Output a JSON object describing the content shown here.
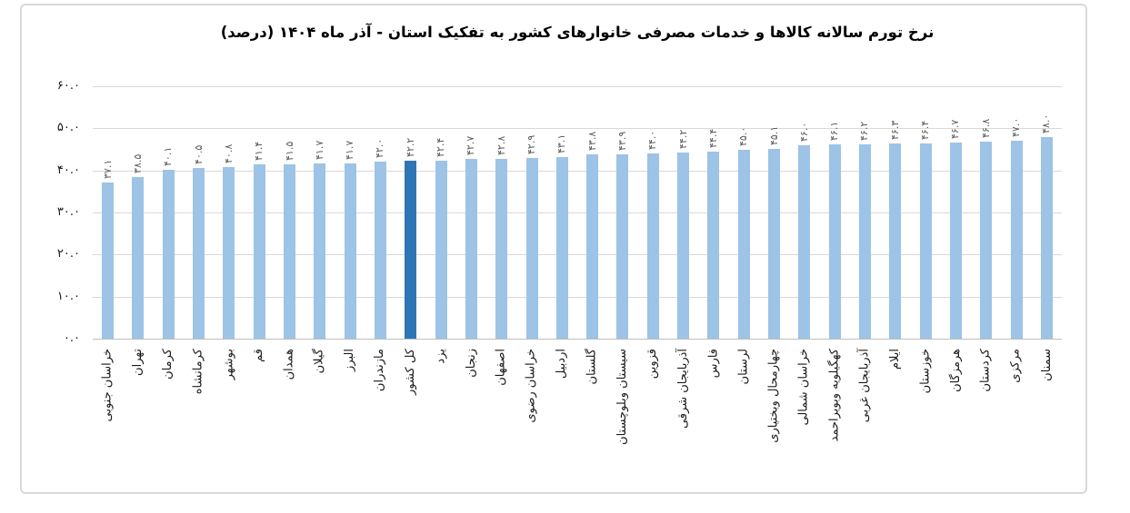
{
  "chart_data": {
    "type": "bar",
    "title": "نرخ تورم سالانه کالاها و خدمات مصرفی خانوارهای کشور به تفکیک استان - آذر ماه ۱۴۰۴ (درصد)",
    "categories": [
      "خراسان جنوبی",
      "تهران",
      "کرمان",
      "کرمانشاه",
      "بوشهر",
      "قم",
      "همدان",
      "گیلان",
      "البرز",
      "مازندران",
      "کل کشور",
      "یزد",
      "زنجان",
      "اصفهان",
      "خراسان رضوی",
      "اردبیل",
      "گلستان",
      "سیستان وبلوچستان",
      "قزوین",
      "آذربایجان شرقی",
      "فارس",
      "لرستان",
      "چهارمحال وبختیاری",
      "خراسان شمالی",
      "کهگیلویه وبویراحمد",
      "آذربایجان غربی",
      "ایلام",
      "خوزستان",
      "هرمزگان",
      "کردستان",
      "مرکزی",
      "سمنان"
    ],
    "values": [
      37.1,
      38.5,
      40.1,
      40.5,
      40.8,
      41.4,
      41.5,
      41.7,
      41.7,
      42.0,
      42.2,
      42.4,
      42.7,
      42.8,
      42.9,
      43.1,
      43.8,
      43.9,
      44.0,
      44.2,
      44.4,
      45.0,
      45.1,
      46.0,
      46.1,
      46.2,
      46.3,
      46.4,
      46.7,
      46.8,
      47.0,
      48.0
    ],
    "value_labels": [
      "۳۷.۱",
      "۳۸.۵",
      "۴۰.۱",
      "۴۰.۵",
      "۴۰.۸",
      "۴۱.۴",
      "۴۱.۵",
      "۴۱.۷",
      "۴۱.۷",
      "۴۲.۰",
      "۴۲.۲",
      "۴۲.۴",
      "۴۲.۷",
      "۴۲.۸",
      "۴۲.۹",
      "۴۳.۱",
      "۴۳.۸",
      "۴۳.۹",
      "۴۴.۰",
      "۴۴.۲",
      "۴۴.۴",
      "۴۵.۰",
      "۴۵.۱",
      "۴۶.۰",
      "۴۶.۱",
      "۴۶.۲",
      "۴۶.۳",
      "۴۶.۴",
      "۴۶.۷",
      "۴۶.۸",
      "۴۷.۰",
      "۴۸.۰"
    ],
    "highlight_index": 10,
    "highlight_category": "کل کشور",
    "ylim": [
      0,
      60
    ],
    "ytick_step": 10,
    "ytick_labels": [
      "۰.۰",
      "۱۰.۰",
      "۲۰.۰",
      "۳۰.۰",
      "۴۰.۰",
      "۵۰.۰",
      "۶۰.۰"
    ],
    "xlabel": "",
    "ylabel": "",
    "grid": true,
    "legend": "none",
    "colors": {
      "bar": "#9DC3E6",
      "bar_highlight": "#2E75B6",
      "gridline": "#D9D9D9",
      "axis_line": "#BFBFBF",
      "title": "#000000",
      "value_label": "#595959",
      "tick_label": "#1A1A1A",
      "frame_border": "#D9D9D9",
      "background": "#FFFFFF"
    }
  }
}
